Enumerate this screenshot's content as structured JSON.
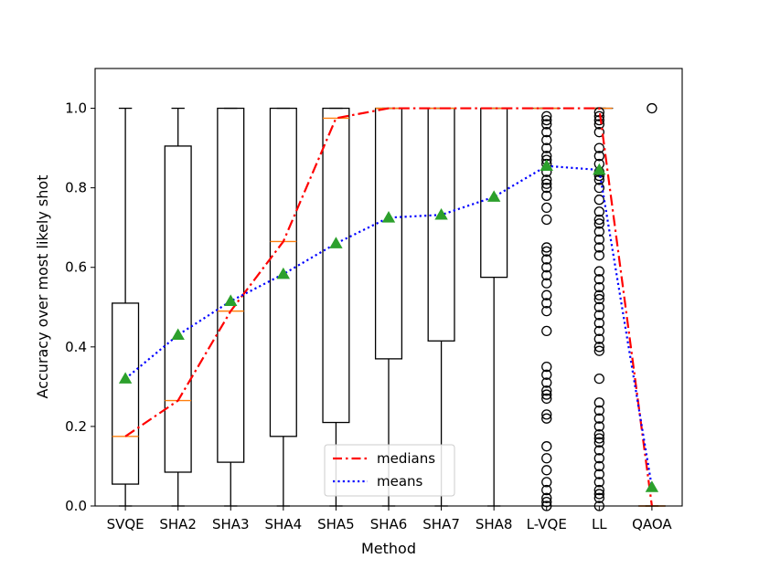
{
  "chart_data": {
    "type": "box",
    "xlabel": "Method",
    "ylabel": "Accuracy over most likely shot",
    "ylim": [
      0,
      1.1
    ],
    "yticks": [
      0.0,
      0.2,
      0.4,
      0.6,
      0.8,
      1.0
    ],
    "ytick_labels": [
      "0.0",
      "0.2",
      "0.4",
      "0.6",
      "0.8",
      "1.0"
    ],
    "categories": [
      "SVQE",
      "SHA2",
      "SHA3",
      "SHA4",
      "SHA5",
      "SHA6",
      "SHA7",
      "SHA8",
      "L-VQE",
      "LL",
      "QAOA"
    ],
    "boxes": [
      {
        "whislo": 0.0,
        "q1": 0.055,
        "med": 0.175,
        "q3": 0.51,
        "whishi": 1.0,
        "fliers": []
      },
      {
        "whislo": 0.0,
        "q1": 0.085,
        "med": 0.265,
        "q3": 0.905,
        "whishi": 1.0,
        "fliers": []
      },
      {
        "whislo": 0.0,
        "q1": 0.11,
        "med": 0.49,
        "q3": 1.0,
        "whishi": 1.0,
        "fliers": []
      },
      {
        "whislo": 0.0,
        "q1": 0.175,
        "med": 0.665,
        "q3": 1.0,
        "whishi": 1.0,
        "fliers": []
      },
      {
        "whislo": 0.0,
        "q1": 0.21,
        "med": 0.975,
        "q3": 1.0,
        "whishi": 1.0,
        "fliers": []
      },
      {
        "whislo": 0.0,
        "q1": 0.37,
        "med": 1.0,
        "q3": 1.0,
        "whishi": 1.0,
        "fliers": []
      },
      {
        "whislo": 0.0,
        "q1": 0.415,
        "med": 1.0,
        "q3": 1.0,
        "whishi": 1.0,
        "fliers": []
      },
      {
        "whislo": 0.0,
        "q1": 0.575,
        "med": 1.0,
        "q3": 1.0,
        "whishi": 1.0,
        "fliers": []
      },
      {
        "whislo": 1.0,
        "q1": 1.0,
        "med": 1.0,
        "q3": 1.0,
        "whishi": 1.0,
        "fliers": [
          0.0,
          0.01,
          0.02,
          0.04,
          0.06,
          0.09,
          0.12,
          0.15,
          0.22,
          0.23,
          0.27,
          0.28,
          0.29,
          0.31,
          0.33,
          0.35,
          0.44,
          0.49,
          0.51,
          0.53,
          0.56,
          0.58,
          0.6,
          0.62,
          0.64,
          0.65,
          0.72,
          0.75,
          0.78,
          0.8,
          0.81,
          0.82,
          0.84,
          0.86,
          0.87,
          0.88,
          0.9,
          0.92,
          0.94,
          0.96,
          0.97,
          0.98
        ]
      },
      {
        "whislo": 1.0,
        "q1": 1.0,
        "med": 1.0,
        "q3": 1.0,
        "whishi": 1.0,
        "fliers": [
          0.0,
          0.02,
          0.03,
          0.04,
          0.06,
          0.08,
          0.1,
          0.12,
          0.14,
          0.16,
          0.17,
          0.18,
          0.2,
          0.22,
          0.24,
          0.26,
          0.32,
          0.39,
          0.4,
          0.42,
          0.44,
          0.46,
          0.48,
          0.5,
          0.52,
          0.53,
          0.55,
          0.57,
          0.59,
          0.63,
          0.65,
          0.67,
          0.69,
          0.71,
          0.72,
          0.74,
          0.77,
          0.8,
          0.82,
          0.83,
          0.84,
          0.86,
          0.88,
          0.9,
          0.94,
          0.96,
          0.97,
          0.98,
          0.99
        ]
      },
      {
        "whislo": 0.0,
        "q1": 0.0,
        "med": 0.0,
        "q3": 0.0,
        "whishi": 0.0,
        "fliers": [
          1.0
        ]
      }
    ],
    "medians_line": [
      0.175,
      0.265,
      0.49,
      0.665,
      0.975,
      1.0,
      1.0,
      1.0,
      1.0,
      1.0,
      0.0
    ],
    "means": [
      0.32,
      0.43,
      0.515,
      0.583,
      0.66,
      0.725,
      0.732,
      0.777,
      0.855,
      0.845,
      0.047
    ],
    "legend": {
      "position": "lower-center",
      "entries": [
        {
          "label": "medians",
          "color": "#ff0000",
          "style": "dashdot"
        },
        {
          "label": "means",
          "color": "#0000ff",
          "style": "dotted"
        }
      ]
    },
    "colors": {
      "box": "#000000",
      "median_tick": "#ff7f0e",
      "mean_marker": "#2ca02c",
      "medians_line": "#ff0000",
      "means_line": "#0000ff"
    }
  }
}
